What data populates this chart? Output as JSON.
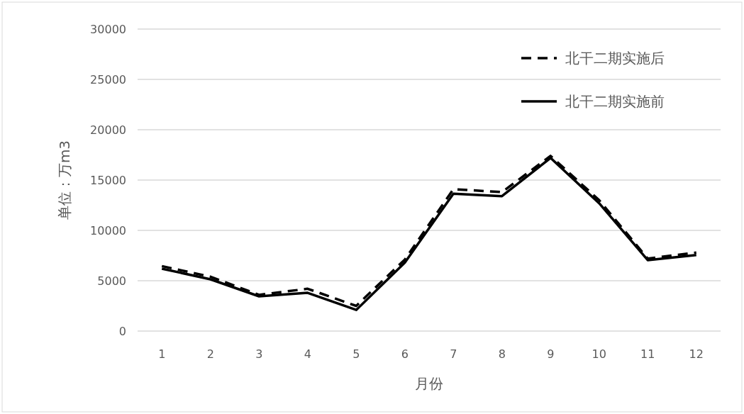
{
  "chart_data": {
    "type": "line",
    "xlabel": "月份",
    "ylabel": "单位：万m3",
    "categories": [
      "1",
      "2",
      "3",
      "4",
      "5",
      "6",
      "7",
      "8",
      "9",
      "10",
      "11",
      "12"
    ],
    "series": [
      {
        "name": "北干二期实施后",
        "color": "#000000",
        "line_style": "dashed",
        "values": [
          6450,
          5400,
          3600,
          4200,
          2500,
          7100,
          14100,
          13800,
          17400,
          13000,
          7200,
          7800
        ]
      },
      {
        "name": "北干二期实施前",
        "color": "#000000",
        "line_style": "solid",
        "values": [
          6200,
          5140,
          3450,
          3800,
          2100,
          6800,
          13650,
          13400,
          17200,
          12700,
          7050,
          7550
        ]
      }
    ],
    "ylim": [
      0,
      30000
    ],
    "yticks": [
      0,
      5000,
      10000,
      15000,
      20000,
      25000,
      30000
    ],
    "grid": "y",
    "legend": "top right",
    "marker": "none"
  }
}
